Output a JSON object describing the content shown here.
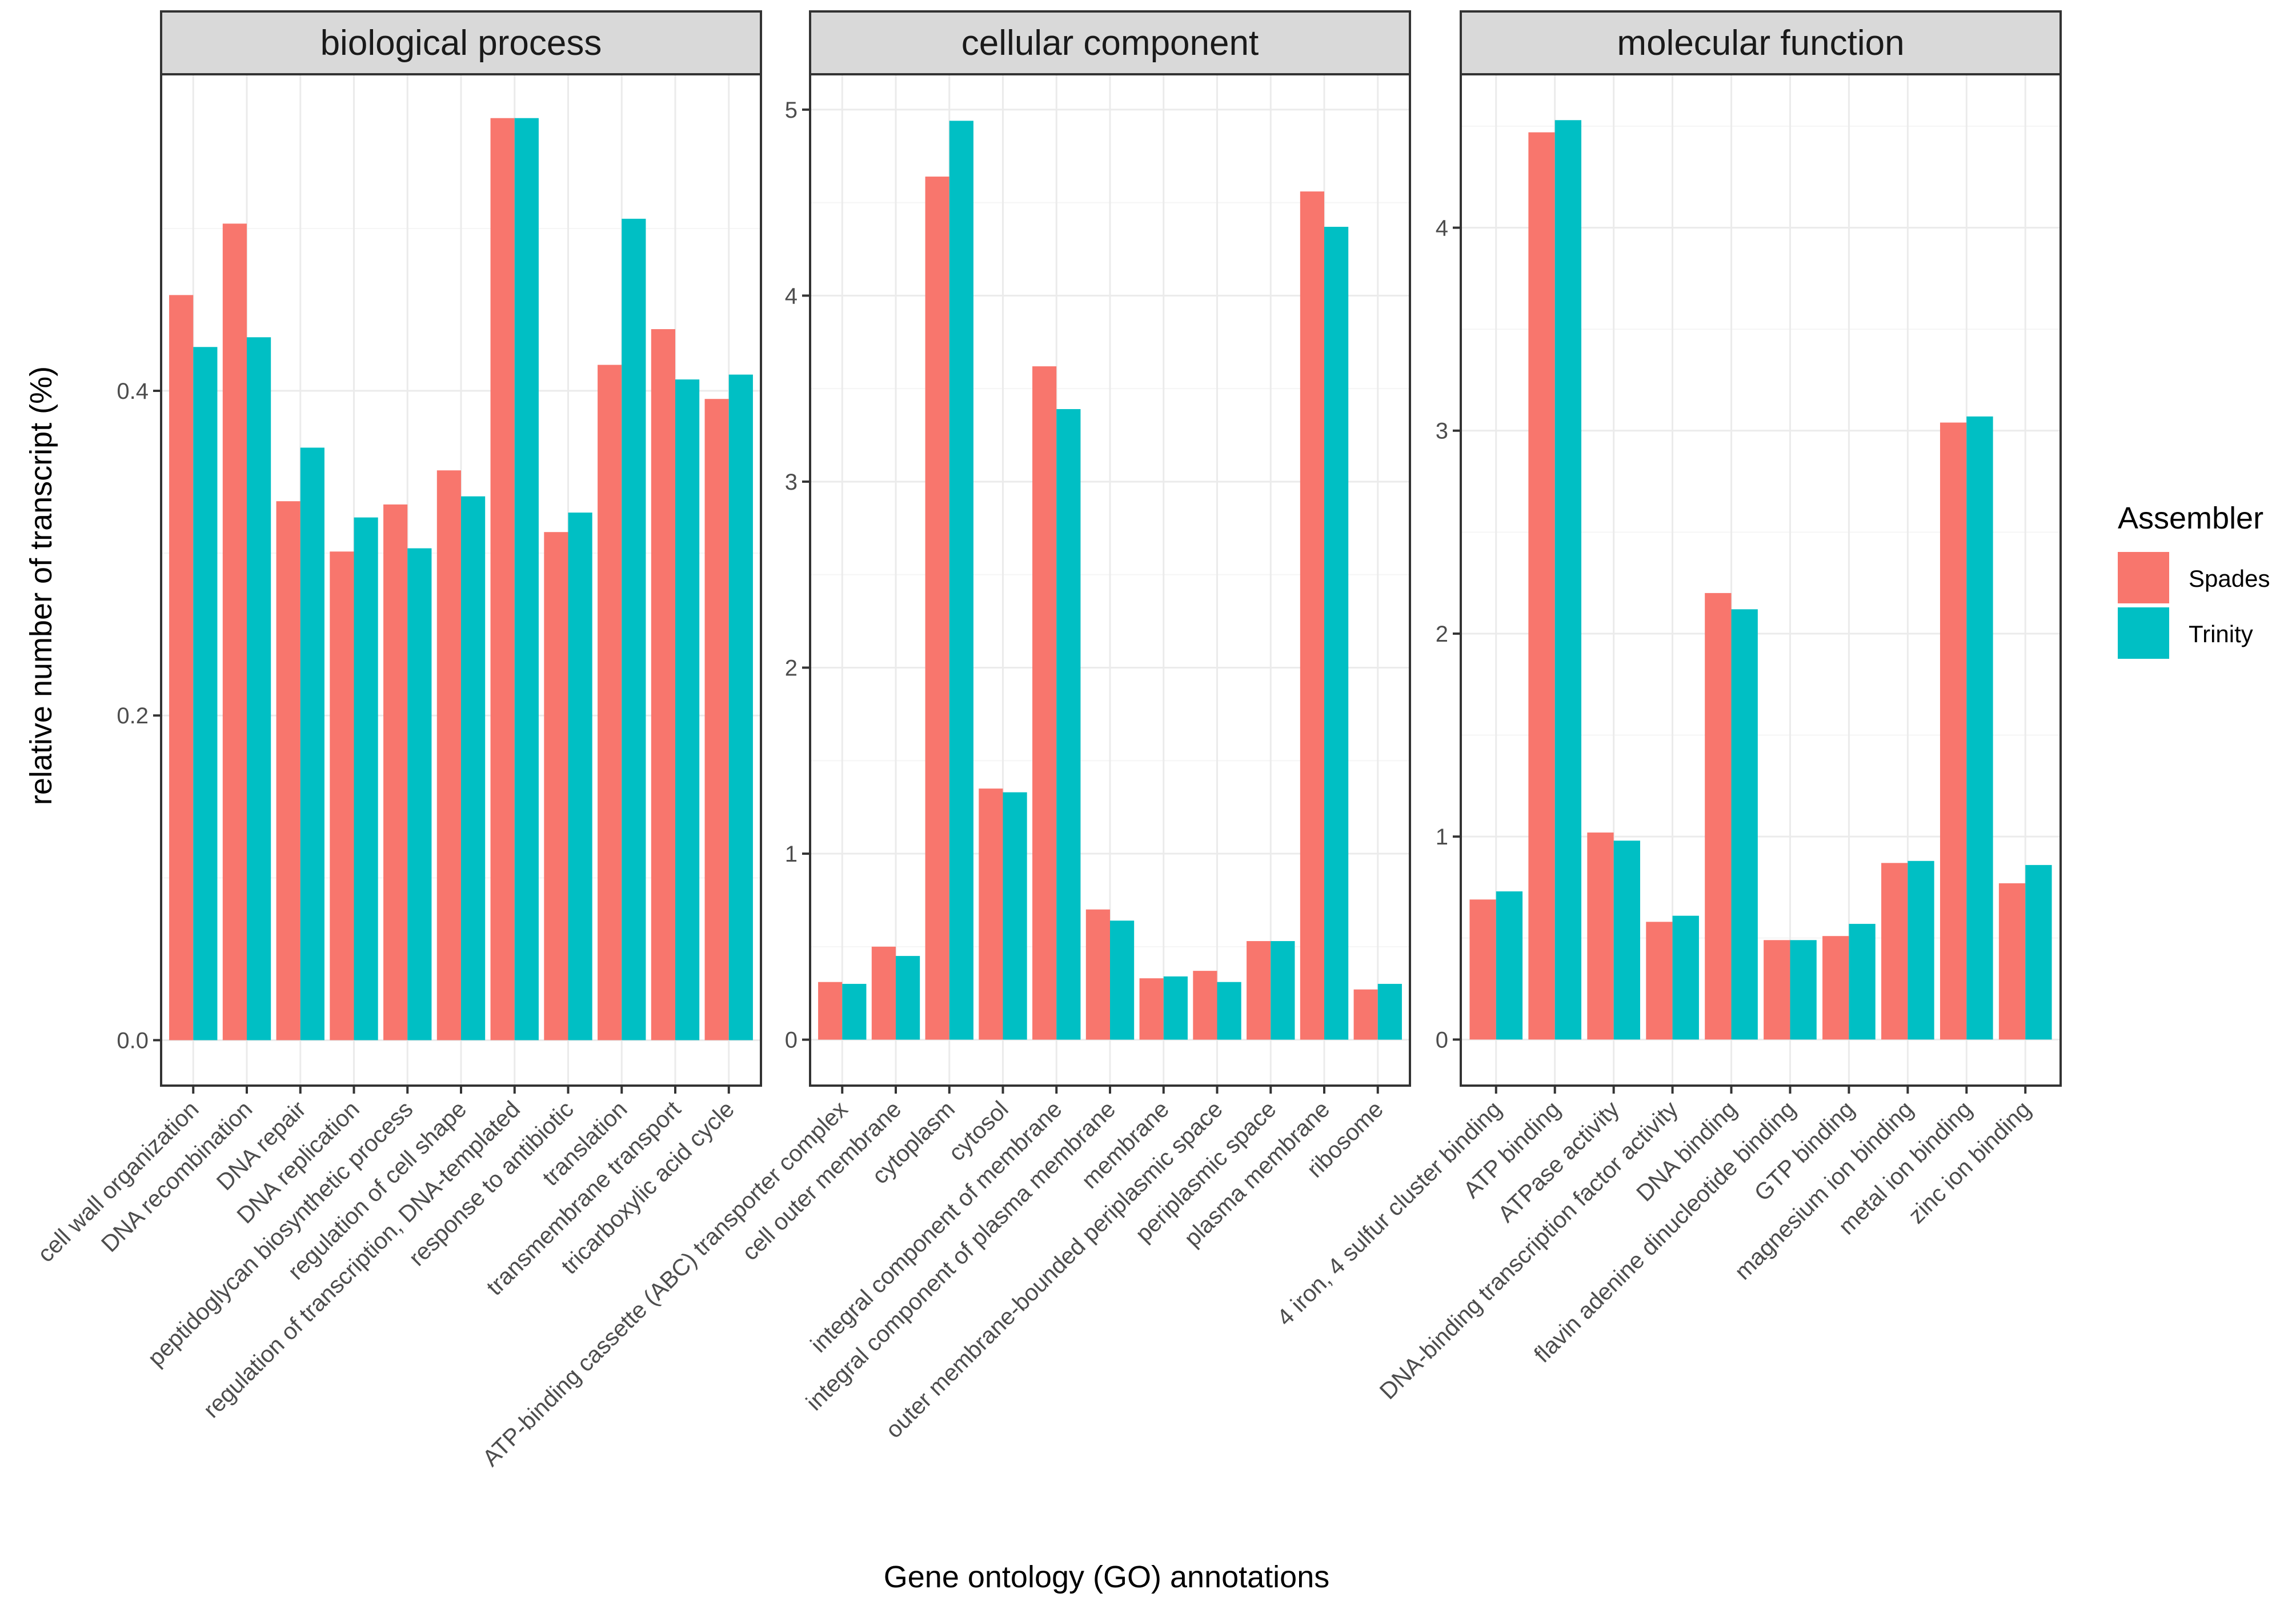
{
  "chart_data": {
    "type": "bar",
    "xlabel": "Gene ontology (GO) annotations",
    "ylabel": "relative number of transcript (%)",
    "legend": {
      "title": "Assembler",
      "position": "right",
      "entries": [
        {
          "name": "Spades",
          "color": "#f8766d"
        },
        {
          "name": "Trinity",
          "color": "#00bfc4"
        }
      ]
    },
    "panels": [
      {
        "title": "biological process",
        "ylim": [
          -0.028,
          0.595
        ],
        "yticks": [
          0.0,
          0.2,
          0.4
        ],
        "ytick_labels": [
          "0.0",
          "0.2",
          "0.4"
        ],
        "minor_ticks": [
          0.1,
          0.3,
          0.5
        ],
        "categories": [
          "cell wall organization",
          "DNA recombination",
          "DNA repair",
          "DNA replication",
          "peptidoglycan biosynthetic process",
          "regulation of cell shape",
          "regulation of transcription, DNA-templated",
          "response to antibiotic",
          "translation",
          "transmembrane transport",
          "tricarboxylic acid cycle"
        ],
        "series": [
          {
            "name": "Spades",
            "values": [
              0.459,
              0.503,
              0.332,
              0.301,
              0.33,
              0.351,
              0.568,
              0.313,
              0.416,
              0.438,
              0.395
            ]
          },
          {
            "name": "Trinity",
            "values": [
              0.427,
              0.433,
              0.365,
              0.322,
              0.303,
              0.335,
              0.568,
              0.325,
              0.506,
              0.407,
              0.41
            ]
          }
        ]
      },
      {
        "title": "cellular component",
        "ylim": [
          -0.247,
          5.19
        ],
        "yticks": [
          0,
          1,
          2,
          3,
          4,
          5
        ],
        "ytick_labels": [
          "0",
          "1",
          "2",
          "3",
          "4",
          "5"
        ],
        "minor_ticks": [
          0.5,
          1.5,
          2.5,
          3.5,
          4.5
        ],
        "categories": [
          "ATP-binding cassette (ABC) transporter complex",
          "cell outer membrane",
          "cytoplasm",
          "cytosol",
          "integral component of membrane",
          "integral component of plasma membrane",
          "membrane",
          "outer membrane-bounded periplasmic space",
          "periplasmic space",
          "plasma membrane",
          "ribosome"
        ],
        "series": [
          {
            "name": "Spades",
            "values": [
              0.31,
              0.5,
              4.64,
              1.35,
              3.62,
              0.7,
              0.33,
              0.37,
              0.53,
              4.56,
              0.27
            ]
          },
          {
            "name": "Trinity",
            "values": [
              0.3,
              0.45,
              4.94,
              1.33,
              3.39,
              0.64,
              0.34,
              0.31,
              0.53,
              4.37,
              0.3
            ]
          }
        ]
      },
      {
        "title": "molecular function",
        "ylim": [
          -0.227,
          4.756
        ],
        "yticks": [
          0,
          1,
          2,
          3,
          4
        ],
        "ytick_labels": [
          "0",
          "1",
          "2",
          "3",
          "4"
        ],
        "minor_ticks": [
          0.5,
          1.5,
          2.5,
          3.5,
          4.5
        ],
        "categories": [
          "4 iron, 4 sulfur cluster binding",
          "ATP binding",
          "ATPase activity",
          "DNA-binding transcription factor activity",
          "DNA binding",
          "flavin adenine dinucleotide binding",
          "GTP binding",
          "magnesium ion binding",
          "metal ion binding",
          "zinc ion binding"
        ],
        "series": [
          {
            "name": "Spades",
            "values": [
              0.69,
              4.47,
              1.02,
              0.58,
              2.2,
              0.49,
              0.51,
              0.87,
              3.04,
              0.77
            ]
          },
          {
            "name": "Trinity",
            "values": [
              0.73,
              4.53,
              0.98,
              0.61,
              2.12,
              0.49,
              0.57,
              0.88,
              3.07,
              0.86
            ]
          }
        ]
      }
    ]
  }
}
